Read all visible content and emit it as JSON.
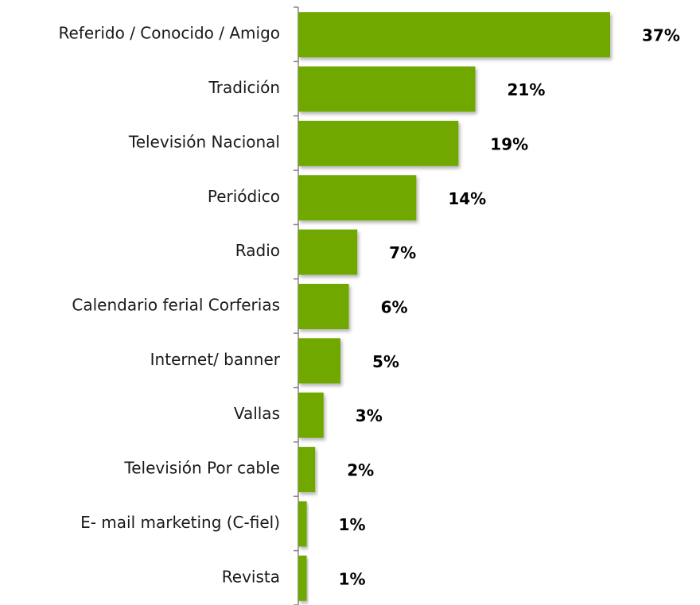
{
  "chart_data": {
    "type": "bar",
    "orientation": "horizontal",
    "categories": [
      "Referido / Conocido / Amigo",
      "Tradición",
      "Televisión Nacional",
      "Periódico",
      "Radio",
      "Calendario ferial Corferias",
      "Internet/ banner",
      "Vallas",
      "Televisión Por cable",
      "E- mail marketing (C-fiel)",
      "Revista"
    ],
    "values": [
      37,
      21,
      19,
      14,
      7,
      6,
      5,
      3,
      2,
      1,
      1
    ],
    "value_labels": [
      "37%",
      "21%",
      "19%",
      "14%",
      "7%",
      "6%",
      "5%",
      "3%",
      "2%",
      "1%",
      "1%"
    ],
    "color": "#70a800"
  }
}
